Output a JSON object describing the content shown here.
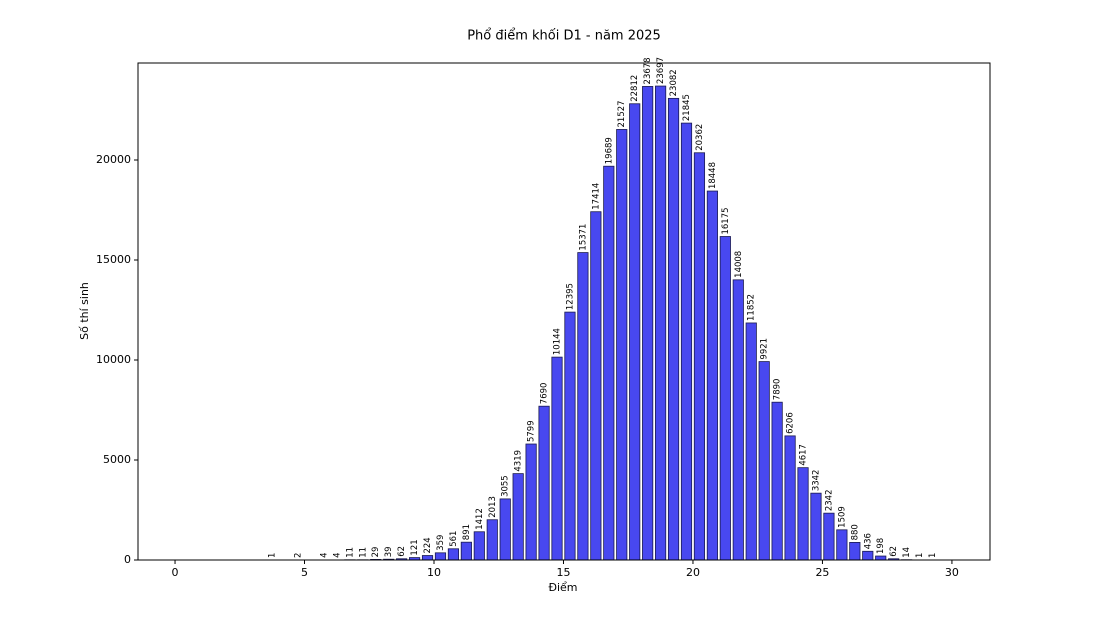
{
  "chart_data": {
    "type": "bar",
    "title": "Phổ điểm khối D1 - năm 2025",
    "xlabel": "Điểm",
    "ylabel": "Số thí sinh",
    "x": [
      3.75,
      4.75,
      5.75,
      6.25,
      6.75,
      7.25,
      7.75,
      8.25,
      8.75,
      9.25,
      9.75,
      10.25,
      10.75,
      11.25,
      11.75,
      12.25,
      12.75,
      13.25,
      13.75,
      14.25,
      14.75,
      15.25,
      15.75,
      16.25,
      16.75,
      17.25,
      17.75,
      18.25,
      18.75,
      19.25,
      19.75,
      20.25,
      20.75,
      21.25,
      21.75,
      22.25,
      22.75,
      23.25,
      23.75,
      24.25,
      24.75,
      25.25,
      25.75,
      26.25,
      26.75,
      27.25,
      27.75,
      28.25,
      28.75,
      29.25
    ],
    "values": [
      1,
      2,
      4,
      4,
      11,
      11,
      29,
      39,
      62,
      121,
      224,
      359,
      561,
      891,
      1412,
      2013,
      3055,
      4319,
      5799,
      7690,
      10144,
      12395,
      15371,
      17414,
      19689,
      21527,
      22812,
      23678,
      23697,
      23082,
      21845,
      20362,
      18448,
      16175,
      14008,
      11852,
      9921,
      7890,
      6206,
      4617,
      3342,
      2342,
      1509,
      880,
      436,
      198,
      62,
      14,
      1,
      1
    ],
    "color": "#4848f0",
    "xlim": [
      -1.43,
      31.47
    ],
    "xticks": [
      0,
      5,
      10,
      15,
      20,
      25,
      30
    ],
    "ylim": [
      0,
      24850
    ],
    "yticks": [
      0,
      5000,
      10000,
      15000,
      20000
    ]
  }
}
